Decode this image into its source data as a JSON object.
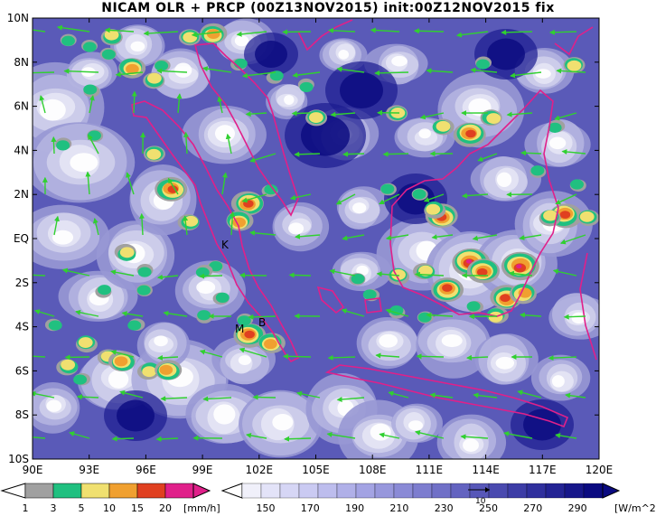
{
  "title": "NICAM OLR + PRCP (00Z13NOV2015) init:00Z12NOV2015 fix",
  "lat_labels": [
    "10N",
    "8N",
    "6N",
    "4N",
    "2N",
    "EQ",
    "2S",
    "4S",
    "6S",
    "8S",
    "10S"
  ],
  "lon_labels": [
    "90E",
    "93E",
    "96E",
    "99E",
    "102E",
    "105E",
    "108E",
    "111E",
    "114E",
    "117E",
    "120E"
  ],
  "place_labels": [
    "K",
    "M",
    "B"
  ],
  "colors": {
    "olr": [
      "#ffffff",
      "#e6e6f5",
      "#cfcfeb",
      "#b4b4e0",
      "#9898d4",
      "#7c7cc8",
      "#6060bb",
      "#4848ae",
      "#3030a0",
      "#1b1b90",
      "#0a0a80"
    ],
    "precip": [
      "#a0a0a0",
      "#20c080",
      "#f0e070",
      "#f0a030",
      "#e04020",
      "#e0208a"
    ],
    "coast": "#e0208a",
    "wind": "#30d030"
  },
  "colorbar_precip": {
    "ticks": [
      "1",
      "3",
      "5",
      "10",
      "15",
      "20"
    ],
    "unit": "[mm/h]"
  },
  "colorbar_olr": {
    "ticks": [
      "150",
      "170",
      "190",
      "210",
      "230",
      "250",
      "270",
      "290"
    ],
    "unit": "[W/m^2]"
  },
  "vector_ref": "10"
}
